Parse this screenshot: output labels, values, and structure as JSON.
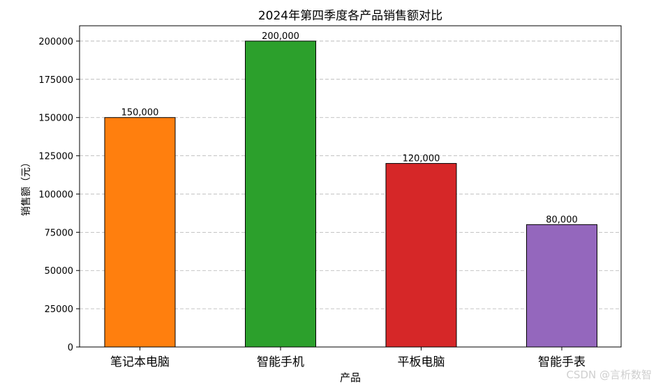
{
  "chart_data": {
    "type": "bar",
    "title": "2024年第四季度各产品销售额对比",
    "xlabel": "产品",
    "ylabel": "销售额（元）",
    "categories": [
      "笔记本电脑",
      "智能手机",
      "平板电脑",
      "智能手表"
    ],
    "values": [
      150000,
      200000,
      120000,
      80000
    ],
    "value_labels": [
      "150,000",
      "200,000",
      "120,000",
      "80,000"
    ],
    "colors": [
      "#ff7f0e",
      "#2ca02c",
      "#d62728",
      "#9467bd"
    ],
    "ylim": [
      0,
      210000
    ],
    "yticks": [
      0,
      25000,
      50000,
      75000,
      100000,
      125000,
      150000,
      175000,
      200000
    ],
    "grid": "y-dashed"
  },
  "watermark": "CSDN @言析数智"
}
